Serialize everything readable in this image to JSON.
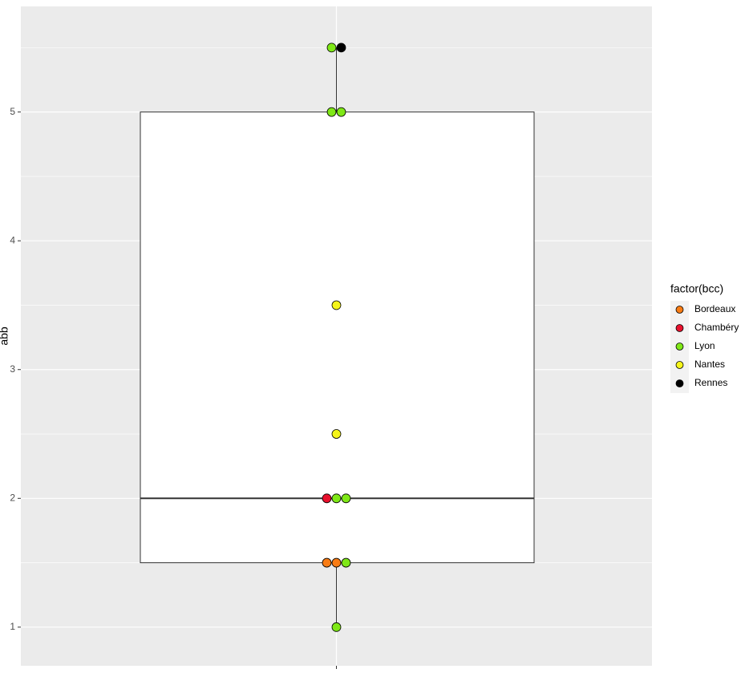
{
  "chart_data": {
    "type": "box",
    "y_label": "abb",
    "categories": [
      null
    ],
    "box": {
      "whisker_low": 1,
      "q1": 1.5,
      "median": 2,
      "q3": 5,
      "whisker_high": 5.5
    },
    "series": [
      {
        "name": "Bordeaux",
        "color": "#f97c14",
        "values": [
          1.5,
          1.5
        ]
      },
      {
        "name": "Chambéry",
        "color": "#e8112d",
        "values": [
          2
        ]
      },
      {
        "name": "Lyon",
        "color": "#7fe817",
        "values": [
          5.5,
          5,
          5,
          2,
          2,
          1.5,
          1
        ]
      },
      {
        "name": "Nantes",
        "color": "#f5f51a",
        "values": [
          3.5,
          2.5
        ]
      },
      {
        "name": "Rennes",
        "color": "#000000",
        "values": [
          5.5
        ]
      }
    ],
    "legend_title": "factor(bcc)",
    "legend_position": "right",
    "ylim": [
      0.7,
      5.82
    ],
    "yticks": [
      1,
      2,
      3,
      4,
      5
    ],
    "minor_yticks": [
      1.5,
      2.5,
      3.5,
      4.5,
      5.5
    ],
    "grid": true
  }
}
